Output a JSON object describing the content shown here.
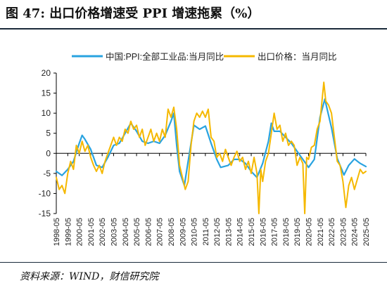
{
  "header": {
    "title": "图 47:  出口价格增速受 PPI 增速拖累（%）"
  },
  "footer": {
    "source": "资料来源：WIND，财信研究院"
  },
  "chart_data": {
    "type": "line",
    "title": "",
    "xlabel": "",
    "ylabel": "",
    "ylim": [
      -15,
      20
    ],
    "yticks": [
      -15,
      -10,
      -5,
      0,
      5,
      10,
      15,
      20
    ],
    "xticks": [
      "1998-05",
      "1999-05",
      "2000-05",
      "2001-05",
      "2002-05",
      "2003-05",
      "2004-05",
      "2005-05",
      "2006-05",
      "2007-05",
      "2008-05",
      "2009-05",
      "2010-05",
      "2011-05",
      "2012-05",
      "2013-05",
      "2014-05",
      "2015-05",
      "2016-05",
      "2017-05",
      "2018-05",
      "2019-05",
      "2020-05",
      "2021-05",
      "2022-05",
      "2023-05",
      "2024-05",
      "2025-05"
    ],
    "xrange": [
      "1998-05",
      "2025-05"
    ],
    "grid": false,
    "legend_position": "top",
    "series": [
      {
        "name": "中国:PPI:全部工业品:当月同比",
        "color": "#29a3e0",
        "points": [
          [
            "1998-05",
            -4.5
          ],
          [
            "1998-11",
            -5.5
          ],
          [
            "1999-05",
            -4.0
          ],
          [
            "1999-11",
            -2.0
          ],
          [
            "2000-05",
            2.5
          ],
          [
            "2000-08",
            4.5
          ],
          [
            "2000-11",
            3.5
          ],
          [
            "2001-05",
            1.0
          ],
          [
            "2001-11",
            -3.0
          ],
          [
            "2002-05",
            -3.5
          ],
          [
            "2002-11",
            -1.0
          ],
          [
            "2003-05",
            2.0
          ],
          [
            "2003-11",
            2.5
          ],
          [
            "2004-05",
            5.0
          ],
          [
            "2004-11",
            7.5
          ],
          [
            "2005-05",
            5.5
          ],
          [
            "2005-11",
            3.0
          ],
          [
            "2006-05",
            2.5
          ],
          [
            "2006-11",
            3.0
          ],
          [
            "2007-05",
            2.5
          ],
          [
            "2007-11",
            4.5
          ],
          [
            "2008-05",
            8.0
          ],
          [
            "2008-08",
            10.0
          ],
          [
            "2008-11",
            2.0
          ],
          [
            "2009-02",
            -4.5
          ],
          [
            "2009-07",
            -8.0
          ],
          [
            "2009-11",
            -2.0
          ],
          [
            "2010-05",
            7.0
          ],
          [
            "2010-11",
            6.0
          ],
          [
            "2011-05",
            6.8
          ],
          [
            "2011-11",
            2.5
          ],
          [
            "2012-05",
            -1.5
          ],
          [
            "2012-09",
            -3.5
          ],
          [
            "2013-05",
            -3.0
          ],
          [
            "2013-11",
            -1.5
          ],
          [
            "2014-05",
            -1.5
          ],
          [
            "2014-11",
            -2.5
          ],
          [
            "2015-05",
            -4.5
          ],
          [
            "2015-11",
            -6.0
          ],
          [
            "2016-05",
            -2.5
          ],
          [
            "2016-11",
            3.0
          ],
          [
            "2017-02",
            7.5
          ],
          [
            "2017-05",
            5.5
          ],
          [
            "2017-11",
            5.5
          ],
          [
            "2018-05",
            4.0
          ],
          [
            "2018-11",
            2.5
          ],
          [
            "2019-05",
            0.5
          ],
          [
            "2019-11",
            -1.5
          ],
          [
            "2020-05",
            -3.5
          ],
          [
            "2020-11",
            -1.5
          ],
          [
            "2021-05",
            9.0
          ],
          [
            "2021-10",
            13.5
          ],
          [
            "2022-05",
            6.4
          ],
          [
            "2022-11",
            -1.3
          ],
          [
            "2023-06",
            -5.4
          ],
          [
            "2023-11",
            -3.0
          ],
          [
            "2024-05",
            -1.4
          ],
          [
            "2024-11",
            -2.5
          ],
          [
            "2025-05",
            -3.3
          ]
        ]
      },
      {
        "name": "出口价格：当月同比",
        "color": "#f5b800",
        "points": [
          [
            "1998-05",
            -6.0
          ],
          [
            "1998-08",
            -9.0
          ],
          [
            "1998-11",
            -8.0
          ],
          [
            "1999-02",
            -10.0
          ],
          [
            "1999-05",
            -5.0
          ],
          [
            "1999-08",
            -2.0
          ],
          [
            "1999-11",
            -4.0
          ],
          [
            "2000-02",
            2.0
          ],
          [
            "2000-05",
            0.0
          ],
          [
            "2000-08",
            3.0
          ],
          [
            "2000-11",
            0.5
          ],
          [
            "2001-02",
            2.0
          ],
          [
            "2001-05",
            -1.0
          ],
          [
            "2001-08",
            -3.0
          ],
          [
            "2001-11",
            -4.5
          ],
          [
            "2002-02",
            -3.0
          ],
          [
            "2002-05",
            -5.0
          ],
          [
            "2002-08",
            -2.0
          ],
          [
            "2002-11",
            0.0
          ],
          [
            "2003-02",
            2.0
          ],
          [
            "2003-05",
            4.0
          ],
          [
            "2003-08",
            2.0
          ],
          [
            "2003-11",
            4.0
          ],
          [
            "2004-02",
            3.0
          ],
          [
            "2004-05",
            6.0
          ],
          [
            "2004-08",
            5.0
          ],
          [
            "2004-11",
            8.0
          ],
          [
            "2005-02",
            6.0
          ],
          [
            "2005-05",
            7.0
          ],
          [
            "2005-08",
            4.0
          ],
          [
            "2005-11",
            6.0
          ],
          [
            "2006-02",
            2.0
          ],
          [
            "2006-05",
            4.0
          ],
          [
            "2006-08",
            6.0
          ],
          [
            "2006-11",
            3.0
          ],
          [
            "2007-02",
            5.0
          ],
          [
            "2007-05",
            3.0
          ],
          [
            "2007-08",
            6.0
          ],
          [
            "2007-11",
            4.0
          ],
          [
            "2008-02",
            11.0
          ],
          [
            "2008-05",
            9.0
          ],
          [
            "2008-08",
            11.5
          ],
          [
            "2008-11",
            6.0
          ],
          [
            "2009-02",
            -3.0
          ],
          [
            "2009-05",
            -6.0
          ],
          [
            "2009-08",
            -9.0
          ],
          [
            "2009-11",
            -7.0
          ],
          [
            "2010-02",
            2.0
          ],
          [
            "2010-05",
            8.0
          ],
          [
            "2010-08",
            10.0
          ],
          [
            "2010-11",
            9.0
          ],
          [
            "2011-02",
            10.5
          ],
          [
            "2011-05",
            9.0
          ],
          [
            "2011-08",
            11.0
          ],
          [
            "2011-11",
            4.0
          ],
          [
            "2012-02",
            3.0
          ],
          [
            "2012-05",
            -1.0
          ],
          [
            "2012-08",
            0.0
          ],
          [
            "2012-11",
            -2.0
          ],
          [
            "2013-02",
            1.0
          ],
          [
            "2013-05",
            -1.0
          ],
          [
            "2013-08",
            -3.0
          ],
          [
            "2013-11",
            -1.0
          ],
          [
            "2014-02",
            0.5
          ],
          [
            "2014-05",
            -2.0
          ],
          [
            "2014-08",
            -1.0
          ],
          [
            "2014-11",
            -4.0
          ],
          [
            "2015-02",
            -2.0
          ],
          [
            "2015-05",
            -5.0
          ],
          [
            "2015-08",
            -1.0
          ],
          [
            "2015-11",
            -5.0
          ],
          [
            "2016-01",
            -15.0
          ],
          [
            "2016-03",
            -4.0
          ],
          [
            "2016-05",
            -7.0
          ],
          [
            "2016-08",
            -2.0
          ],
          [
            "2016-11",
            0.0
          ],
          [
            "2017-02",
            5.0
          ],
          [
            "2017-05",
            10.0
          ],
          [
            "2017-08",
            6.0
          ],
          [
            "2017-11",
            7.0
          ],
          [
            "2018-02",
            3.0
          ],
          [
            "2018-05",
            5.0
          ],
          [
            "2018-08",
            2.0
          ],
          [
            "2018-11",
            3.0
          ],
          [
            "2019-02",
            2.0
          ],
          [
            "2019-05",
            -3.0
          ],
          [
            "2019-08",
            -1.0
          ],
          [
            "2019-11",
            -2.5
          ],
          [
            "2020-01",
            -15.0
          ],
          [
            "2020-03",
            -1.0
          ],
          [
            "2020-05",
            -1.5
          ],
          [
            "2020-08",
            1.5
          ],
          [
            "2020-11",
            2.0
          ],
          [
            "2021-02",
            6.0
          ],
          [
            "2021-05",
            8.0
          ],
          [
            "2021-09",
            17.7
          ],
          [
            "2021-11",
            13.0
          ],
          [
            "2022-02",
            12.0
          ],
          [
            "2022-05",
            10.0
          ],
          [
            "2022-08",
            4.0
          ],
          [
            "2022-11",
            -2.0
          ],
          [
            "2023-02",
            -3.0
          ],
          [
            "2023-05",
            -7.0
          ],
          [
            "2023-08",
            -13.5
          ],
          [
            "2023-11",
            -8.0
          ],
          [
            "2024-02",
            -6.0
          ],
          [
            "2024-05",
            -9.0
          ],
          [
            "2024-08",
            -6.5
          ],
          [
            "2024-11",
            -4.0
          ],
          [
            "2025-02",
            -5.0
          ],
          [
            "2025-05",
            -4.5
          ]
        ]
      }
    ]
  }
}
